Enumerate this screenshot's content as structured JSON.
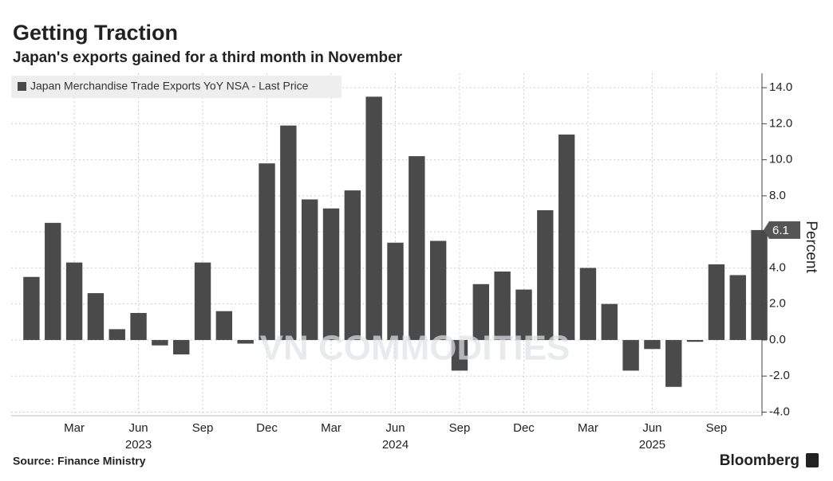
{
  "chart_data": {
    "type": "bar",
    "title": "Getting Traction",
    "subtitle": "Japan's exports gained for a third month in November",
    "y_label": "Percent",
    "source": "Source: Finance Ministry",
    "brand": "Bloomberg",
    "watermark": "VN COMMODITIES",
    "categories": [
      null,
      null,
      "Mar",
      null,
      null,
      "Jun",
      null,
      null,
      "Sep",
      null,
      null,
      "Dec",
      null,
      null,
      "Mar",
      null,
      null,
      "Jun",
      null,
      null,
      "Sep",
      null,
      null,
      "Dec",
      null,
      null,
      "Mar",
      null,
      null,
      "Jun",
      null,
      null,
      "Sep",
      null,
      null
    ],
    "years": [
      "2023",
      "2024",
      "2025"
    ],
    "series": [
      {
        "name": "Japan Merchandise Trade Exports YoY NSA - Last Price",
        "color": "#4a4a4a",
        "values": [
          3.5,
          6.5,
          4.3,
          2.6,
          0.6,
          1.5,
          -0.3,
          -0.8,
          4.3,
          1.6,
          -0.2,
          9.8,
          11.9,
          7.8,
          7.3,
          8.3,
          13.5,
          5.4,
          10.2,
          5.5,
          -1.7,
          3.1,
          3.8,
          2.8,
          7.2,
          11.4,
          4.0,
          2.0,
          -1.7,
          -0.5,
          -2.6,
          -0.1,
          4.2,
          3.6,
          6.1
        ]
      }
    ],
    "ylim": [
      -4.2,
      14.8
    ],
    "yticks": [
      {
        "value": -4,
        "label": "-4.0"
      },
      {
        "value": -2,
        "label": "-2.0"
      },
      {
        "value": 0,
        "label": "0.0"
      },
      {
        "value": 2,
        "label": "2.0"
      },
      {
        "value": 4,
        "label": "4.0"
      },
      {
        "value": 6,
        "label": "6.0"
      },
      {
        "value": 8,
        "label": "8.0"
      },
      {
        "value": 10,
        "label": "10.0"
      },
      {
        "value": 12,
        "label": "12.0"
      },
      {
        "value": 14,
        "label": "14.0"
      }
    ],
    "grid": true
  }
}
